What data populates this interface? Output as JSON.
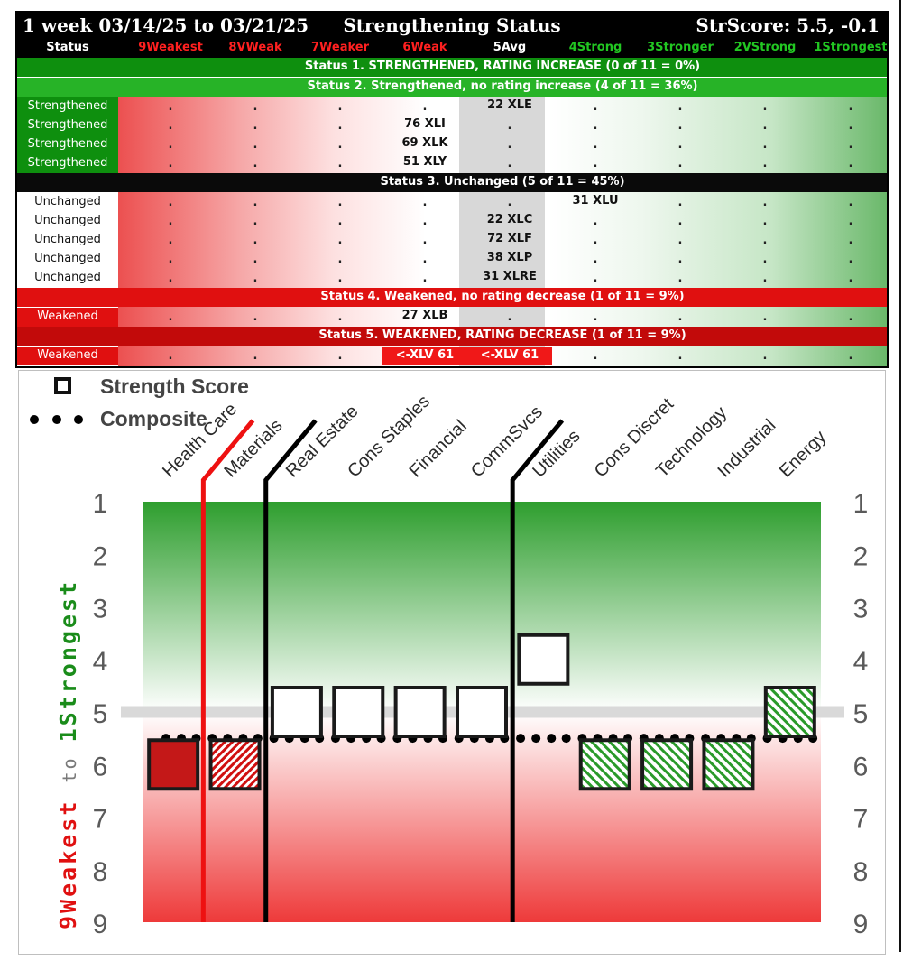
{
  "table": {
    "title_left": "1 week 03/14/25 to 03/21/25",
    "title_center": "Strengthening Status",
    "title_right": "StrScore: 5.5, -0.1",
    "columns": [
      {
        "label": "Status",
        "color": "#ffffff"
      },
      {
        "label": "9Weakest",
        "color": "#ff2020"
      },
      {
        "label": "8VWeak",
        "color": "#ff2020"
      },
      {
        "label": "7Weaker",
        "color": "#ff2020"
      },
      {
        "label": "6Weak",
        "color": "#ff2020"
      },
      {
        "label": "5Avg",
        "color": "#ffffff"
      },
      {
        "label": "4Strong",
        "color": "#22c722"
      },
      {
        "label": "3Stronger",
        "color": "#22c722"
      },
      {
        "label": "2VStrong",
        "color": "#22c722"
      },
      {
        "label": "1Strongest",
        "color": "#22c722"
      }
    ],
    "rows": [
      {
        "kind": "banner",
        "text": "Status 1. STRENGTHENED, RATING INCREASE (0 of 11 = 0%)",
        "bg": "#0e8f0e",
        "fg": "#ffffff"
      },
      {
        "kind": "banner",
        "text": "Status 2. Strengthened, no rating increase (4 of 11 = 36%)",
        "bg": "#27b327",
        "fg": "#ffffff"
      },
      {
        "kind": "data",
        "status": "Strengthened",
        "status_bg": "#0e8f0e",
        "status_fg": "#ffffff",
        "col": 5,
        "value": "22 XLE"
      },
      {
        "kind": "data",
        "status": "Strengthened",
        "status_bg": "#0e8f0e",
        "status_fg": "#ffffff",
        "col": 4,
        "value": "76 XLI"
      },
      {
        "kind": "data",
        "status": "Strengthened",
        "status_bg": "#0e8f0e",
        "status_fg": "#ffffff",
        "col": 4,
        "value": "69 XLK"
      },
      {
        "kind": "data",
        "status": "Strengthened",
        "status_bg": "#0e8f0e",
        "status_fg": "#ffffff",
        "col": 4,
        "value": "51 XLY"
      },
      {
        "kind": "banner",
        "text": "Status 3. Unchanged (5 of 11 = 45%)",
        "bg": "#0a0a0a",
        "fg": "#ffffff"
      },
      {
        "kind": "data",
        "status": "Unchanged",
        "status_bg": "#ffffff",
        "status_fg": "#111111",
        "col": 6,
        "value": "31 XLU"
      },
      {
        "kind": "data",
        "status": "Unchanged",
        "status_bg": "#ffffff",
        "status_fg": "#111111",
        "col": 5,
        "value": "22 XLC"
      },
      {
        "kind": "data",
        "status": "Unchanged",
        "status_bg": "#ffffff",
        "status_fg": "#111111",
        "col": 5,
        "value": "72 XLF"
      },
      {
        "kind": "data",
        "status": "Unchanged",
        "status_bg": "#ffffff",
        "status_fg": "#111111",
        "col": 5,
        "value": "38 XLP"
      },
      {
        "kind": "data",
        "status": "Unchanged",
        "status_bg": "#ffffff",
        "status_fg": "#111111",
        "col": 5,
        "value": "31 XLRE"
      },
      {
        "kind": "banner",
        "text": "Status 4. Weakened, no rating decrease (1 of 11 = 9%)",
        "bg": "#e01010",
        "fg": "#ffffff"
      },
      {
        "kind": "data",
        "status": "Weakened",
        "status_bg": "#e01010",
        "status_fg": "#ffffff",
        "col": 4,
        "value": "27 XLB"
      },
      {
        "kind": "banner",
        "text": "Status 5. WEAKENED, RATING DECREASE (1 of 11 = 9%)",
        "bg": "#c20a0a",
        "fg": "#ffffff"
      },
      {
        "kind": "data",
        "status": "Weakened",
        "status_bg": "#e01010",
        "status_fg": "#ffffff",
        "cells": [
          {
            "col": 4,
            "value": "<-XLV 61",
            "bg": "#f01818",
            "fg": "#ffffff"
          },
          {
            "col": 5,
            "value": "<-XLV 61",
            "bg": "#f01818",
            "fg": "#ffffff"
          }
        ]
      }
    ],
    "empty_mark": "."
  },
  "chart_data": {
    "type": "scatter",
    "legend": [
      {
        "label": "Strength Score",
        "marker": "square"
      },
      {
        "label": "Composite",
        "marker": "dots"
      }
    ],
    "y_axis_label_parts": [
      {
        "text": "9Weakest",
        "color": "#e01010"
      },
      {
        "text": "to",
        "color": "#7a7a7a"
      },
      {
        "text": "1Strongest",
        "color": "#1a8c1a"
      }
    ],
    "ylim": [
      1,
      9
    ],
    "yticks": [
      1,
      2,
      3,
      4,
      5,
      6,
      7,
      8,
      9
    ],
    "y_reversed": true,
    "average_line": 5,
    "categories": [
      "Health Care",
      "Materials",
      "Real Estate",
      "Cons Staples",
      "Financial",
      "CommSvcs",
      "Utilities",
      "Cons Discret",
      "Technology",
      "Industrial",
      "Energy"
    ],
    "strength_score": [
      6,
      6,
      5,
      5,
      5,
      5,
      4,
      6,
      6,
      6,
      5
    ],
    "box_style": [
      "solid-red",
      "hatch-red",
      "white",
      "white",
      "white",
      "white",
      "white",
      "hatch-green",
      "hatch-green",
      "hatch-green",
      "hatch-green"
    ],
    "composite": [
      5.5,
      5.5,
      5.5,
      5.5,
      5.5,
      5.5,
      5.5,
      5.5,
      5.5,
      5.5,
      5.5
    ],
    "dividers": [
      {
        "after_index": 0,
        "color": "#ee1111",
        "y": 9
      },
      {
        "after_index": 1,
        "color": "#000000",
        "y": 9
      },
      {
        "after_index": 5,
        "color": "#000000",
        "y": 9
      }
    ],
    "colors": {
      "strong_zone": "#2e9e2e",
      "weak_zone": "#ee3a3a",
      "avg_line": "#d9d9d9",
      "tick": "#5a5a5a"
    }
  }
}
